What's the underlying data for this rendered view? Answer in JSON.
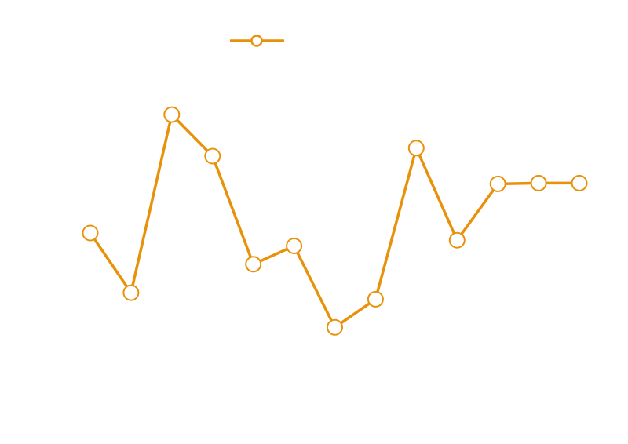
{
  "chart_data": {
    "type": "line",
    "x": [
      1,
      2,
      3,
      4,
      5,
      6,
      7,
      8,
      9,
      10,
      11,
      12,
      13
    ],
    "series": [
      {
        "values": [
          53.2,
          37.5,
          84.3,
          73.4,
          45.0,
          49.8,
          28.4,
          35.8,
          75.5,
          51.3,
          66.1,
          66.3,
          66.3
        ]
      }
    ],
    "ylim": [
      0,
      100
    ],
    "grid": false,
    "legend_placement": "top-center",
    "colors": {
      "line": "#E8920C",
      "marker_fill": "#ffffff"
    },
    "marker": "circle-outline"
  }
}
